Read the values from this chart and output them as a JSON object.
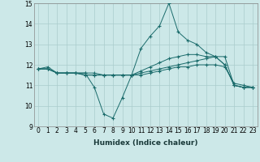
{
  "xlabel": "Humidex (Indice chaleur)",
  "bg_color": "#cce8e8",
  "line_color": "#1a6b6b",
  "grid_color": "#aacccc",
  "xlim": [
    -0.5,
    23.5
  ],
  "ylim": [
    9,
    15
  ],
  "yticks": [
    9,
    10,
    11,
    12,
    13,
    14,
    15
  ],
  "xticks": [
    0,
    1,
    2,
    3,
    4,
    5,
    6,
    7,
    8,
    9,
    10,
    11,
    12,
    13,
    14,
    15,
    16,
    17,
    18,
    19,
    20,
    21,
    22,
    23
  ],
  "series": [
    [
      11.8,
      11.9,
      11.6,
      11.6,
      11.6,
      11.6,
      10.9,
      9.6,
      9.4,
      10.4,
      11.5,
      12.8,
      13.4,
      13.9,
      15.0,
      13.6,
      13.2,
      13.0,
      12.6,
      12.4,
      12.0,
      11.0,
      10.9,
      10.9
    ],
    [
      11.8,
      11.8,
      11.6,
      11.6,
      11.6,
      11.6,
      11.6,
      11.5,
      11.5,
      11.5,
      11.5,
      11.5,
      11.6,
      11.7,
      11.8,
      11.9,
      11.9,
      12.0,
      12.0,
      12.0,
      11.9,
      11.1,
      11.0,
      10.9
    ],
    [
      11.8,
      11.8,
      11.6,
      11.6,
      11.6,
      11.5,
      11.5,
      11.5,
      11.5,
      11.5,
      11.5,
      11.7,
      11.9,
      12.1,
      12.3,
      12.4,
      12.5,
      12.5,
      12.4,
      12.4,
      12.0,
      11.0,
      10.9,
      10.9
    ],
    [
      11.8,
      11.8,
      11.6,
      11.6,
      11.6,
      11.5,
      11.5,
      11.5,
      11.5,
      11.5,
      11.5,
      11.6,
      11.7,
      11.8,
      11.9,
      12.0,
      12.1,
      12.2,
      12.3,
      12.4,
      12.4,
      11.0,
      10.9,
      10.9
    ]
  ],
  "tick_fontsize": 5.5,
  "xlabel_fontsize": 6.5
}
